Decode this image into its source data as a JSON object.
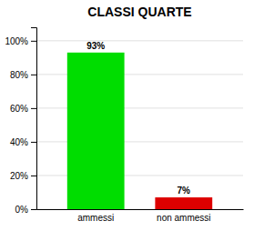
{
  "chart_data": {
    "type": "bar",
    "title": "CLASSI QUARTE",
    "categories": [
      "ammessi",
      "non ammessi"
    ],
    "values": [
      93,
      7
    ],
    "value_labels": [
      "93%",
      "7%"
    ],
    "data_labels": true,
    "colors": [
      "#00dd00",
      "#dd0000"
    ],
    "ylim": [
      0,
      108
    ],
    "yticks": [
      {
        "value": 0,
        "label": "0%"
      },
      {
        "value": 20,
        "label": "20%"
      },
      {
        "value": 40,
        "label": "40%"
      },
      {
        "value": 60,
        "label": "60%"
      },
      {
        "value": 80,
        "label": "80%"
      },
      {
        "value": 100,
        "label": "100%"
      }
    ],
    "grid": true
  }
}
